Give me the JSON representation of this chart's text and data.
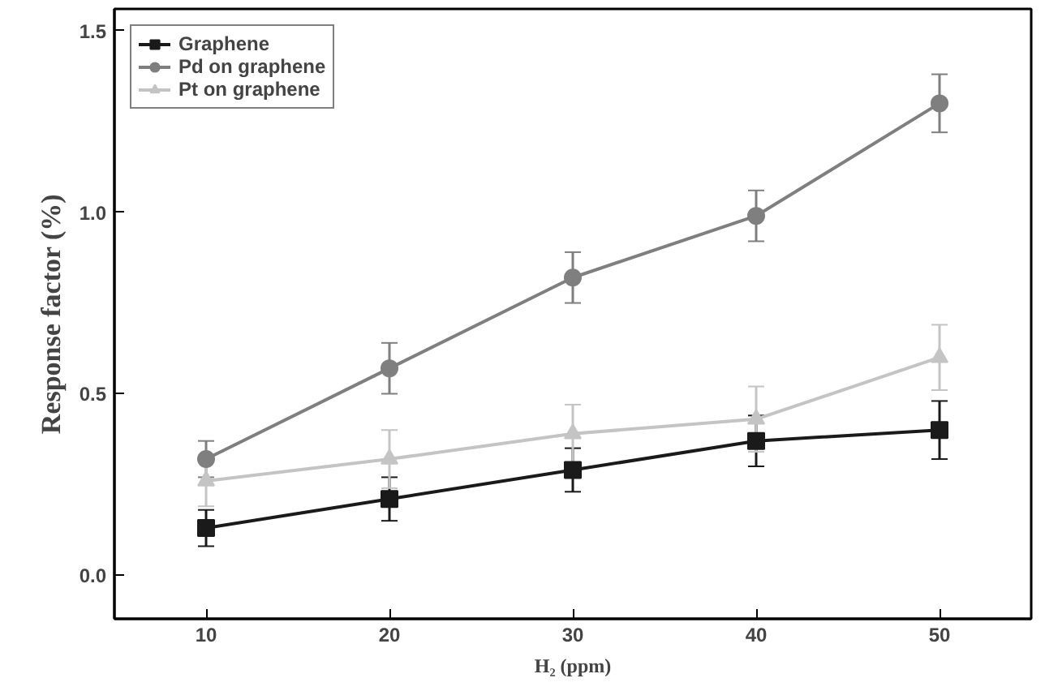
{
  "chart_data": {
    "type": "line",
    "xlabel": "H₂ (ppm)",
    "ylabel": "Response factor (%)",
    "x": [
      10,
      20,
      30,
      40,
      50
    ],
    "xlim": [
      5,
      55
    ],
    "xticks": [
      10,
      20,
      30,
      40,
      50
    ],
    "ylim": [
      -0.12,
      1.56
    ],
    "yticks": [
      {
        "value": 0,
        "label": "0.0"
      },
      0.5,
      {
        "value": 1,
        "label": "1.0"
      },
      1.5
    ],
    "series": [
      {
        "name": "Graphene",
        "color": "#1a1a1a",
        "marker": "square",
        "values": [
          0.13,
          0.21,
          0.29,
          0.37,
          0.4
        ],
        "errors": [
          0.05,
          0.06,
          0.06,
          0.07,
          0.08
        ]
      },
      {
        "name": "Pd on graphene",
        "color": "#7f7f7f",
        "marker": "circle",
        "values": [
          0.32,
          0.57,
          0.82,
          0.99,
          1.3
        ],
        "errors": [
          0.05,
          0.07,
          0.07,
          0.07,
          0.08
        ]
      },
      {
        "name": "Pt on graphene",
        "color": "#c4c4c4",
        "marker": "triangle",
        "values": [
          0.26,
          0.32,
          0.39,
          0.43,
          0.6
        ],
        "errors": [
          0.07,
          0.08,
          0.08,
          0.09,
          0.09
        ]
      }
    ],
    "grid": false,
    "legend": "top left",
    "line_style": "solid"
  }
}
